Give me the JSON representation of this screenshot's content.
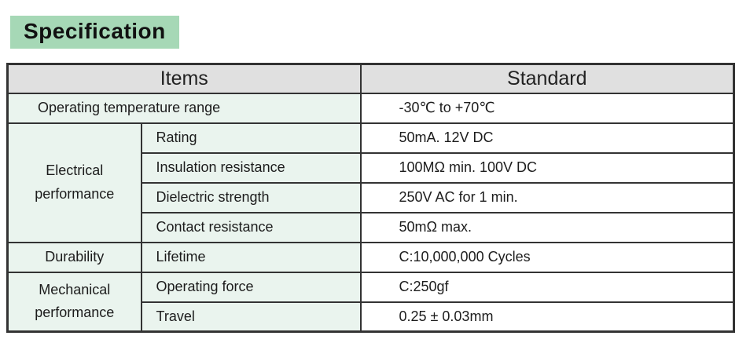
{
  "page_title": "Specification",
  "table": {
    "headers": {
      "items": "Items",
      "standard": "Standard"
    },
    "rows": [
      {
        "item": "Operating temperature range",
        "standard": "-30℃ to +70℃"
      },
      {
        "group": "Electrical performance",
        "group_rowspan": 4,
        "item": "Rating",
        "standard": "50mA. 12V DC"
      },
      {
        "item": "Insulation resistance",
        "standard": "100MΩ min. 100V DC"
      },
      {
        "item": "Dielectric strength",
        "standard": "250V AC for 1 min."
      },
      {
        "item": "Contact resistance",
        "standard": "50mΩ max."
      },
      {
        "group": "Durability",
        "group_rowspan": 1,
        "item": "Lifetime",
        "standard": "C:10,000,000 Cycles"
      },
      {
        "group": "Mechanical performance",
        "group_rowspan": 2,
        "item": "Operating force",
        "standard": "C:250gf"
      },
      {
        "item": "Travel",
        "standard": "0.25 ± 0.03mm"
      }
    ]
  },
  "colors": {
    "title_bg": "#a6d8b6",
    "header_bg": "#e0e0e0",
    "items_bg": "#eaf4ee",
    "standard_bg": "#ffffff",
    "border": "#333333"
  }
}
